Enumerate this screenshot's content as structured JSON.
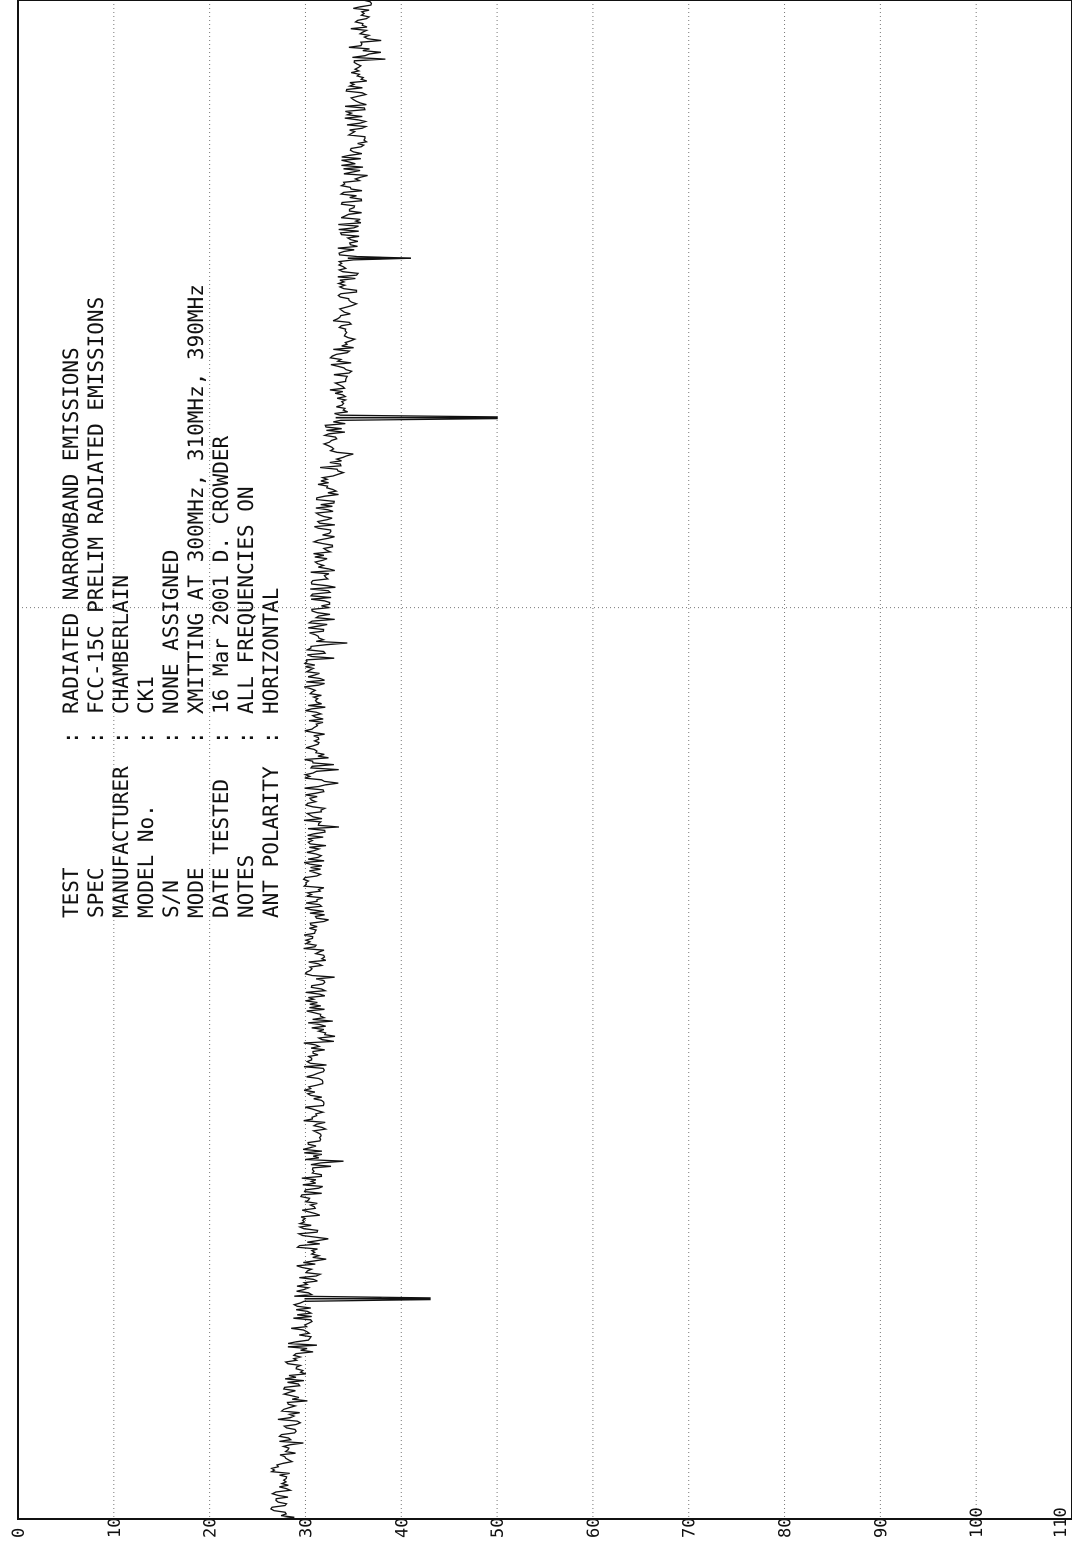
{
  "header": {
    "rows": [
      {
        "label": "TEST",
        "value": "RADIATED NARROWBAND EMISSIONS"
      },
      {
        "label": "SPEC",
        "value": "FCC-15C PRELIM RADIATED EMISSIONS"
      },
      {
        "label": "MANUFACTURER",
        "value": "CHAMBERLAIN"
      },
      {
        "label": "MODEL No.",
        "value": "CK1"
      },
      {
        "label": "S/N",
        "value": "NONE ASSIGNED"
      },
      {
        "label": "MODE",
        "value": "XMITTING AT 300MHz, 310MHz, 390MHz"
      },
      {
        "label": "DATE TESTED",
        "value": "16 Mar 2001  D. CROWDER"
      },
      {
        "label": "NOTES",
        "value": "ALL FREQUENCIES ON"
      },
      {
        "label": "ANT POLARITY",
        "value": "HORIZONTAL"
      }
    ]
  },
  "chart_data": {
    "type": "line",
    "orientation": "rotated-90-ccw",
    "title": "",
    "xlabel": "",
    "ylabel": "",
    "ylim": [
      0,
      110
    ],
    "y_ticks": [
      "0",
      "10",
      "20",
      "30",
      "40",
      "50",
      "60",
      "70",
      "80",
      "90",
      "100",
      "110"
    ],
    "x_ticks": [],
    "grid": true,
    "series": [
      {
        "noise_floor_levels": [
          {
            "x_frac": 0.0,
            "y": 27
          },
          {
            "x_frac": 0.05,
            "y": 28
          },
          {
            "x_frac": 0.15,
            "y": 30
          },
          {
            "x_frac": 0.25,
            "y": 31
          },
          {
            "x_frac": 0.4,
            "y": 31
          },
          {
            "x_frac": 0.55,
            "y": 31
          },
          {
            "x_frac": 0.65,
            "y": 32
          },
          {
            "x_frac": 0.78,
            "y": 34
          },
          {
            "x_frac": 0.9,
            "y": 35
          },
          {
            "x_frac": 1.0,
            "y": 36
          }
        ],
        "spikes": [
          {
            "x_frac": 0.145,
            "y": 43
          },
          {
            "x_frac": 0.725,
            "y": 50
          },
          {
            "x_frac": 0.83,
            "y": 41
          }
        ]
      }
    ]
  }
}
